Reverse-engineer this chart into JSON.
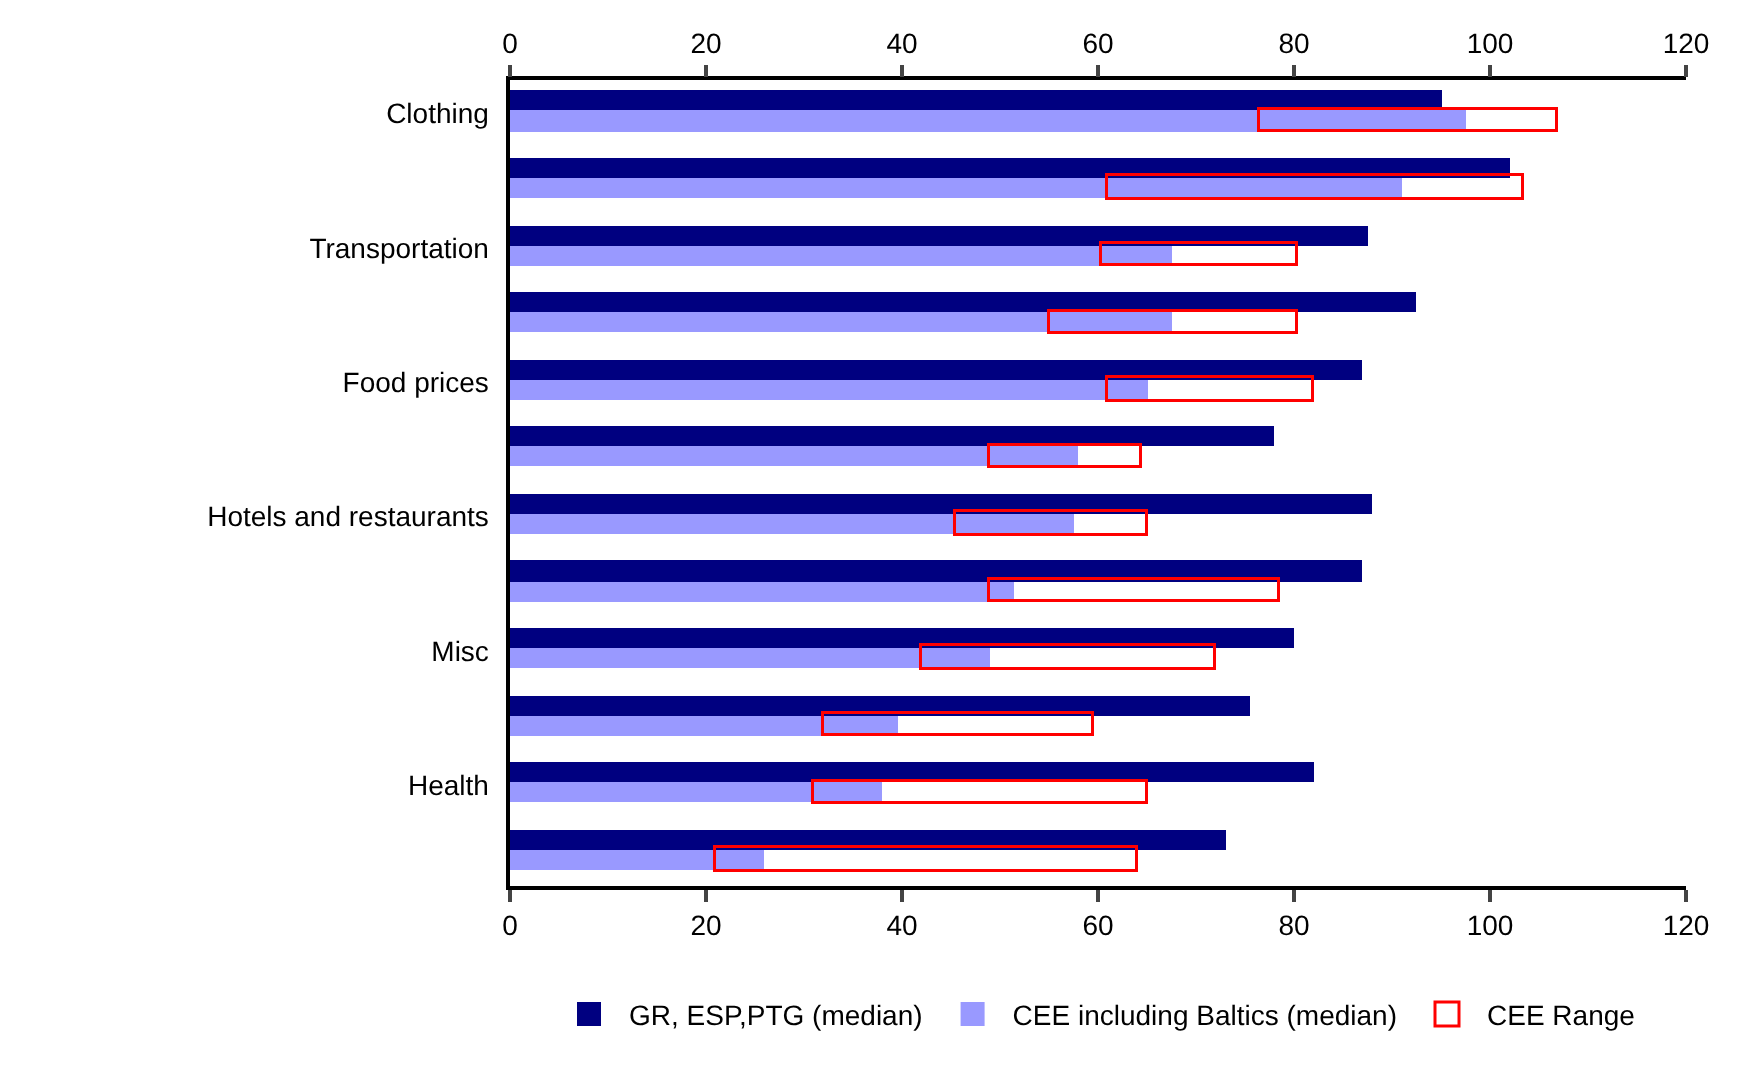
{
  "chart_data": {
    "type": "bar",
    "orientation": "horizontal",
    "categories": [
      "Clothing",
      null,
      "Transportation",
      null,
      "Food prices",
      null,
      "Hotels and restaurants",
      null,
      "Misc",
      null,
      "Health",
      null
    ],
    "series": [
      {
        "name": "GR, ESP,PTG (median)",
        "color": "#000080",
        "values": [
          95,
          102,
          87.5,
          92.5,
          87,
          78,
          88,
          87,
          80,
          75.5,
          82,
          73
        ]
      },
      {
        "name": "CEE including Baltics (median)",
        "color": "#9999ff",
        "values": [
          97.5,
          91,
          67.5,
          67.5,
          65,
          58,
          57.5,
          51.5,
          49,
          39.5,
          38,
          26
        ]
      },
      {
        "name": "CEE Range",
        "color": "#ff0000",
        "base": [
          76.5,
          61,
          60.5,
          55,
          61,
          49,
          45.5,
          49,
          42,
          32,
          31,
          21
        ],
        "values": [
          30.5,
          42.5,
          20,
          25.5,
          21,
          15.5,
          19.5,
          29.5,
          30,
          27.5,
          34,
          43
        ]
      }
    ],
    "xlim": [
      0,
      120
    ],
    "xticks": [
      0,
      20,
      40,
      60,
      80,
      100,
      120
    ],
    "x2lim": [
      0,
      120
    ],
    "x2ticks": [
      0,
      20,
      40,
      60,
      80,
      100,
      120
    ],
    "grid": false,
    "legend": "bottom"
  }
}
